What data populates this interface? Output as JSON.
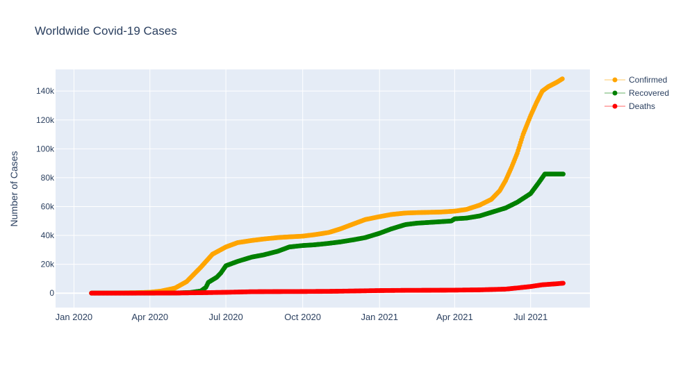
{
  "chart_data": {
    "type": "scatter",
    "title": "Worldwide Covid-19 Cases",
    "xlabel": "",
    "ylabel": "Number of Cases",
    "x_ticks": [
      {
        "date": "2020-01-01",
        "label": "Jan 2020"
      },
      {
        "date": "2020-04-01",
        "label": "Apr 2020"
      },
      {
        "date": "2020-07-01",
        "label": "Jul 2020"
      },
      {
        "date": "2020-10-01",
        "label": "Oct 2020"
      },
      {
        "date": "2021-01-01",
        "label": "Jan 2021"
      },
      {
        "date": "2021-04-01",
        "label": "Apr 2021"
      },
      {
        "date": "2021-07-01",
        "label": "Jul 2021"
      }
    ],
    "y_ticks": [
      {
        "value": 0,
        "label": "0"
      },
      {
        "value": 20000,
        "label": "20k"
      },
      {
        "value": 40000,
        "label": "40k"
      },
      {
        "value": 60000,
        "label": "60k"
      },
      {
        "value": 80000,
        "label": "80k"
      },
      {
        "value": 100000,
        "label": "100k"
      },
      {
        "value": 120000,
        "label": "120k"
      },
      {
        "value": 140000,
        "label": "140k"
      }
    ],
    "xlim": [
      "2019-12-10",
      "2021-09-10"
    ],
    "ylim": [
      -10000,
      155000
    ],
    "grid": true,
    "legend_position": "top-right",
    "series": [
      {
        "name": "Confirmed",
        "color": "#FFA500",
        "points": [
          [
            "2020-01-22",
            0
          ],
          [
            "2020-02-15",
            50
          ],
          [
            "2020-03-15",
            300
          ],
          [
            "2020-04-01",
            600
          ],
          [
            "2020-04-15",
            1500
          ],
          [
            "2020-05-01",
            3500
          ],
          [
            "2020-05-15",
            8000
          ],
          [
            "2020-06-01",
            18000
          ],
          [
            "2020-06-15",
            27000
          ],
          [
            "2020-07-01",
            32000
          ],
          [
            "2020-07-15",
            35000
          ],
          [
            "2020-08-01",
            36500
          ],
          [
            "2020-08-15",
            37500
          ],
          [
            "2020-09-01",
            38500
          ],
          [
            "2020-09-15",
            39000
          ],
          [
            "2020-10-01",
            39500
          ],
          [
            "2020-10-15",
            40500
          ],
          [
            "2020-11-01",
            42000
          ],
          [
            "2020-11-15",
            44500
          ],
          [
            "2020-12-01",
            48000
          ],
          [
            "2020-12-15",
            51000
          ],
          [
            "2021-01-01",
            53000
          ],
          [
            "2021-01-15",
            54500
          ],
          [
            "2021-02-01",
            55500
          ],
          [
            "2021-02-15",
            55800
          ],
          [
            "2021-03-01",
            56000
          ],
          [
            "2021-03-15",
            56200
          ],
          [
            "2021-04-01",
            56800
          ],
          [
            "2021-04-15",
            58000
          ],
          [
            "2021-05-01",
            61000
          ],
          [
            "2021-05-15",
            65000
          ],
          [
            "2021-05-25",
            71000
          ],
          [
            "2021-06-01",
            78000
          ],
          [
            "2021-06-08",
            87000
          ],
          [
            "2021-06-15",
            97000
          ],
          [
            "2021-06-22",
            110000
          ],
          [
            "2021-07-01",
            123000
          ],
          [
            "2021-07-08",
            132000
          ],
          [
            "2021-07-15",
            140000
          ],
          [
            "2021-07-22",
            143000
          ],
          [
            "2021-08-01",
            146000
          ],
          [
            "2021-08-08",
            148500
          ]
        ]
      },
      {
        "name": "Recovered",
        "color": "#008000",
        "points": [
          [
            "2020-01-22",
            0
          ],
          [
            "2020-03-01",
            0
          ],
          [
            "2020-04-01",
            0
          ],
          [
            "2020-05-01",
            100
          ],
          [
            "2020-05-20",
            500
          ],
          [
            "2020-06-01",
            1500
          ],
          [
            "2020-06-07",
            4000
          ],
          [
            "2020-06-10",
            7500
          ],
          [
            "2020-06-20",
            11000
          ],
          [
            "2020-06-25",
            14000
          ],
          [
            "2020-07-01",
            19000
          ],
          [
            "2020-07-15",
            22000
          ],
          [
            "2020-08-01",
            25000
          ],
          [
            "2020-08-15",
            26500
          ],
          [
            "2020-09-01",
            29000
          ],
          [
            "2020-09-15",
            32000
          ],
          [
            "2020-10-01",
            33000
          ],
          [
            "2020-10-15",
            33500
          ],
          [
            "2020-11-01",
            34500
          ],
          [
            "2020-11-15",
            35500
          ],
          [
            "2020-12-01",
            37000
          ],
          [
            "2020-12-15",
            38500
          ],
          [
            "2021-01-01",
            41500
          ],
          [
            "2021-01-15",
            44500
          ],
          [
            "2021-02-01",
            47500
          ],
          [
            "2021-02-15",
            48500
          ],
          [
            "2021-03-01",
            49000
          ],
          [
            "2021-03-15",
            49500
          ],
          [
            "2021-03-28",
            50000
          ],
          [
            "2021-04-01",
            51500
          ],
          [
            "2021-04-15",
            52000
          ],
          [
            "2021-05-01",
            53500
          ],
          [
            "2021-05-15",
            56000
          ],
          [
            "2021-06-01",
            59000
          ],
          [
            "2021-06-15",
            63000
          ],
          [
            "2021-07-01",
            69000
          ],
          [
            "2021-07-10",
            76000
          ],
          [
            "2021-07-18",
            82500
          ],
          [
            "2021-08-01",
            82500
          ],
          [
            "2021-08-09",
            82500
          ]
        ]
      },
      {
        "name": "Deaths",
        "color": "#FF0000",
        "points": [
          [
            "2020-01-22",
            0
          ],
          [
            "2020-03-01",
            0
          ],
          [
            "2020-04-01",
            50
          ],
          [
            "2020-05-01",
            100
          ],
          [
            "2020-06-01",
            300
          ],
          [
            "2020-07-01",
            600
          ],
          [
            "2020-08-01",
            1000
          ],
          [
            "2020-09-01",
            1100
          ],
          [
            "2020-10-01",
            1150
          ],
          [
            "2020-11-01",
            1250
          ],
          [
            "2020-12-01",
            1500
          ],
          [
            "2021-01-01",
            1800
          ],
          [
            "2021-02-01",
            1950
          ],
          [
            "2021-03-01",
            2000
          ],
          [
            "2021-04-01",
            2100
          ],
          [
            "2021-05-01",
            2300
          ],
          [
            "2021-06-01",
            2800
          ],
          [
            "2021-06-15",
            3600
          ],
          [
            "2021-07-01",
            4600
          ],
          [
            "2021-07-15",
            5800
          ],
          [
            "2021-08-01",
            6500
          ],
          [
            "2021-08-09",
            6900
          ]
        ]
      }
    ]
  }
}
